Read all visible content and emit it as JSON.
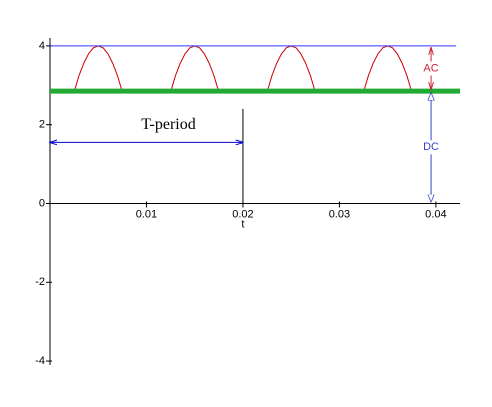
{
  "chart_data": {
    "type": "line",
    "xlabel": "t",
    "xlim": [
      0,
      0.0425
    ],
    "ylim": [
      -4.1,
      4.2
    ],
    "xticks": [
      0.01,
      0.02,
      0.03,
      0.04
    ],
    "yticks": [
      -4,
      -2,
      0,
      2,
      4
    ],
    "series": [
      {
        "color": "#cc0000",
        "width": 1,
        "x": [
          0.0025,
          0.003,
          0.0035,
          0.004,
          0.0045,
          0.005,
          0.0055,
          0.006,
          0.0065,
          0.007,
          0.0075,
          0.01,
          0.0125,
          0.013,
          0.0135,
          0.014,
          0.0145,
          0.015,
          0.0155,
          0.016,
          0.0165,
          0.017,
          0.0175,
          0.02,
          0.0225,
          0.023,
          0.0235,
          0.024,
          0.0245,
          0.025,
          0.0255,
          0.026,
          0.0265,
          0.027,
          0.0275,
          0.03,
          0.0325,
          0.033,
          0.0335,
          0.034,
          0.0345,
          0.035,
          0.0355,
          0.036,
          0.0365,
          0.037,
          0.0375
        ],
        "values": [
          2.83,
          3.24,
          3.56,
          3.8,
          3.95,
          4,
          3.95,
          3.8,
          3.56,
          3.24,
          2.83,
          null,
          2.83,
          3.24,
          3.56,
          3.8,
          3.95,
          4,
          3.95,
          3.8,
          3.56,
          3.24,
          2.83,
          null,
          2.83,
          3.24,
          3.56,
          3.8,
          3.95,
          4,
          3.95,
          3.8,
          3.56,
          3.24,
          2.83,
          null,
          2.83,
          3.24,
          3.56,
          3.8,
          3.95,
          4,
          3.95,
          3.8,
          3.56,
          3.24,
          2.83
        ]
      },
      {
        "color": "#3333ff",
        "width": 1,
        "x": [
          0,
          0.0421
        ],
        "values": [
          4,
          4
        ]
      },
      {
        "color": "#22aa33",
        "width": 5,
        "x": [
          0,
          0.0425
        ],
        "values": [
          2.85,
          2.85
        ]
      }
    ],
    "period": {
      "label": "T-period",
      "start": 0,
      "end": 0.02,
      "y": 1.55,
      "marker_top": 2.4
    },
    "ac": {
      "label": "AC",
      "color": "#cc2233",
      "x": 0.0395,
      "from": 2.85,
      "to": 4
    },
    "dc": {
      "label": "DC",
      "color": "#3344cc",
      "x": 0.0395,
      "from": 0,
      "to": 2.85
    }
  }
}
